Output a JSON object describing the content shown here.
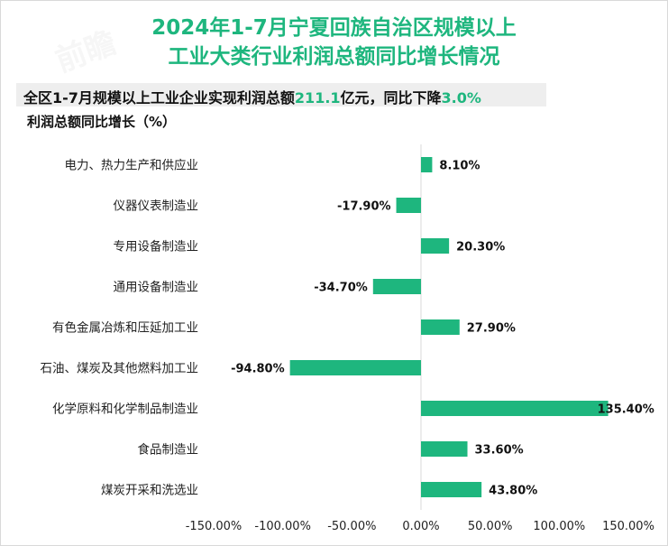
{
  "title_line1": "2024年1-7月宁夏回族自治区规模以上",
  "title_line2": "工业大类行业利润总额同比增长情况",
  "subtitle": {
    "prefix": "全区1-7月规模以上工业企业实现利润总额",
    "value": "211.1",
    "middle": "亿元，同比下降",
    "rate": "3.0%"
  },
  "unit_label": "利润总额同比增长（%）",
  "colors": {
    "accent": "#1eb67e"
  },
  "chart_data": {
    "type": "bar",
    "orientation": "horizontal",
    "categories": [
      "电力、热力生产和供应业",
      "仪器仪表制造业",
      "专用设备制造业",
      "通用设备制造业",
      "有色金属冶炼和压延加工业",
      "石油、煤炭及其他燃料加工业",
      "化学原料和化学制品制造业",
      "食品制造业",
      "煤炭开采和洗选业"
    ],
    "values": [
      8.1,
      -17.9,
      20.3,
      -34.7,
      27.9,
      -94.8,
      135.4,
      33.6,
      43.8
    ],
    "value_labels": [
      "8.10%",
      "-17.90%",
      "20.30%",
      "-34.70%",
      "27.90%",
      "-94.80%",
      "135.40%",
      "33.60%",
      "43.80%"
    ],
    "xlim": [
      -150,
      150
    ],
    "xticks": [
      -150,
      -100,
      -50,
      0,
      50,
      100,
      150
    ],
    "xtick_labels": [
      "-150.00%",
      "-100.00%",
      "-50.00%",
      "0.00%",
      "50.00%",
      "100.00%",
      "150.00%"
    ],
    "grid": false,
    "legend": false
  }
}
